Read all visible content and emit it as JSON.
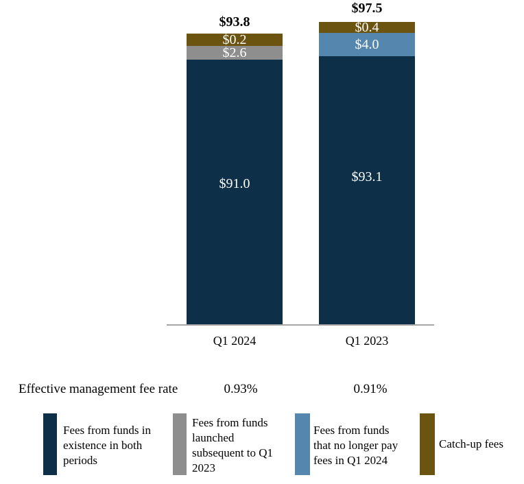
{
  "chart_data": {
    "type": "bar",
    "stacked": true,
    "categories": [
      "Q1 2024",
      "Q1 2023"
    ],
    "series": [
      {
        "name": "Fees from funds in existence in both periods",
        "color": "#0d3048",
        "values": [
          91.0,
          93.1
        ]
      },
      {
        "name": "Fees from funds launched subsequent to Q1 2023",
        "color": "#8e8e8e",
        "values": [
          2.6,
          0
        ]
      },
      {
        "name": "Fees from funds that no longer pay fees in Q1 2024",
        "color": "#5586ae",
        "values": [
          0,
          4.0
        ]
      },
      {
        "name": "Catch-up fees",
        "color": "#6b5310",
        "values": [
          0.2,
          0.4
        ]
      }
    ],
    "totals": [
      93.8,
      97.5
    ],
    "grid": false,
    "legend_position": "bottom",
    "annotations": {
      "fee_rate_label": "Effective management fee rate",
      "fee_rates": [
        "0.93%",
        "0.91%"
      ]
    }
  },
  "bars": [
    {
      "category": "Q1 2024",
      "total_label": "$93.8",
      "seg_catchup_label": "$0.2",
      "seg_launched_label": "$2.6",
      "seg_existing_label": "$91.0"
    },
    {
      "category": "Q1 2023",
      "total_label": "$97.5",
      "seg_catchup_label": "$0.4",
      "seg_nolonger_label": "$4.0",
      "seg_existing_label": "$93.1"
    }
  ],
  "fee_rate_row": {
    "label": "Effective management fee rate",
    "values": [
      "0.93%",
      "0.91%"
    ]
  },
  "legend": [
    {
      "label": "Fees from funds in existence in both periods",
      "color": "#0d3048",
      "lines": [
        "Fees from funds in",
        "existence in both",
        "periods"
      ]
    },
    {
      "label": "Fees from funds launched subsequent to Q1 2023",
      "color": "#8e8e8e",
      "lines": [
        "Fees from funds",
        "launched",
        "subsequent to Q1",
        "2023"
      ]
    },
    {
      "label": "Fees from funds that no longer pay fees in Q1 2024",
      "color": "#5586ae",
      "lines": [
        "Fees from funds",
        "that no longer pay",
        "fees in Q1 2024"
      ]
    },
    {
      "label": "Catch-up fees",
      "color": "#6b5310",
      "lines": [
        "Catch-up fees"
      ]
    }
  ],
  "colors": {
    "navy": "#0d3048",
    "gray": "#8e8e8e",
    "blue": "#5586ae",
    "brown": "#6b5310",
    "axis": "#a6a6a6",
    "background": "#ffffff",
    "value_text": "#ffffff",
    "text": "#000000"
  }
}
